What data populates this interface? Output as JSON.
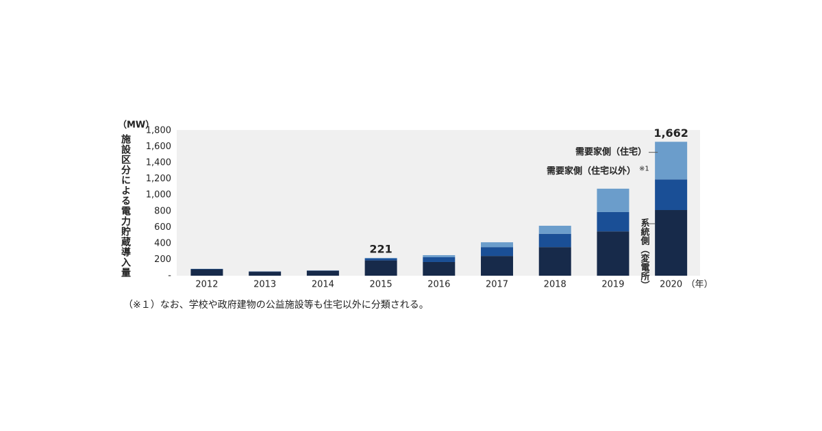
{
  "chart_data": {
    "type": "stacked_bar",
    "y_unit": "（MW）",
    "y_label": "施設区分による電力貯蔵導入量",
    "x_unit": "（年）",
    "categories": [
      "2012",
      "2013",
      "2014",
      "2015",
      "2016",
      "2017",
      "2018",
      "2019",
      "2020"
    ],
    "series": [
      {
        "name": "系統側（変電所）",
        "color": "#172a4a",
        "values": [
          80,
          50,
          62,
          190,
          170,
          245,
          355,
          550,
          815
        ]
      },
      {
        "name": "需要家側（住宅以外）",
        "color": "#1a4f96",
        "values": [
          5,
          3,
          3,
          25,
          60,
          110,
          165,
          240,
          380
        ],
        "note": "※1"
      },
      {
        "name": "需要家側（住宅）",
        "color": "#6b9dcb",
        "values": [
          0,
          0,
          0,
          6,
          25,
          60,
          100,
          290,
          467
        ]
      }
    ],
    "totals": [
      {
        "category": "2015",
        "value": 221
      },
      {
        "category": "2020",
        "value": 1662,
        "label": "1,662"
      }
    ],
    "ylim": [
      0,
      1800
    ],
    "yticks": [
      {
        "value": 0,
        "label": "-"
      },
      200,
      400,
      600,
      800,
      {
        "value": 1000,
        "label": "1,000"
      },
      {
        "value": 1200,
        "label": "1,200"
      },
      {
        "value": 1400,
        "label": "1,400"
      },
      {
        "value": 1600,
        "label": "1,600"
      },
      {
        "value": 1800,
        "label": "1,800"
      }
    ],
    "footnote": "（※１）なお、学校や政府建物の公益施設等も住宅以外に分類される。"
  }
}
